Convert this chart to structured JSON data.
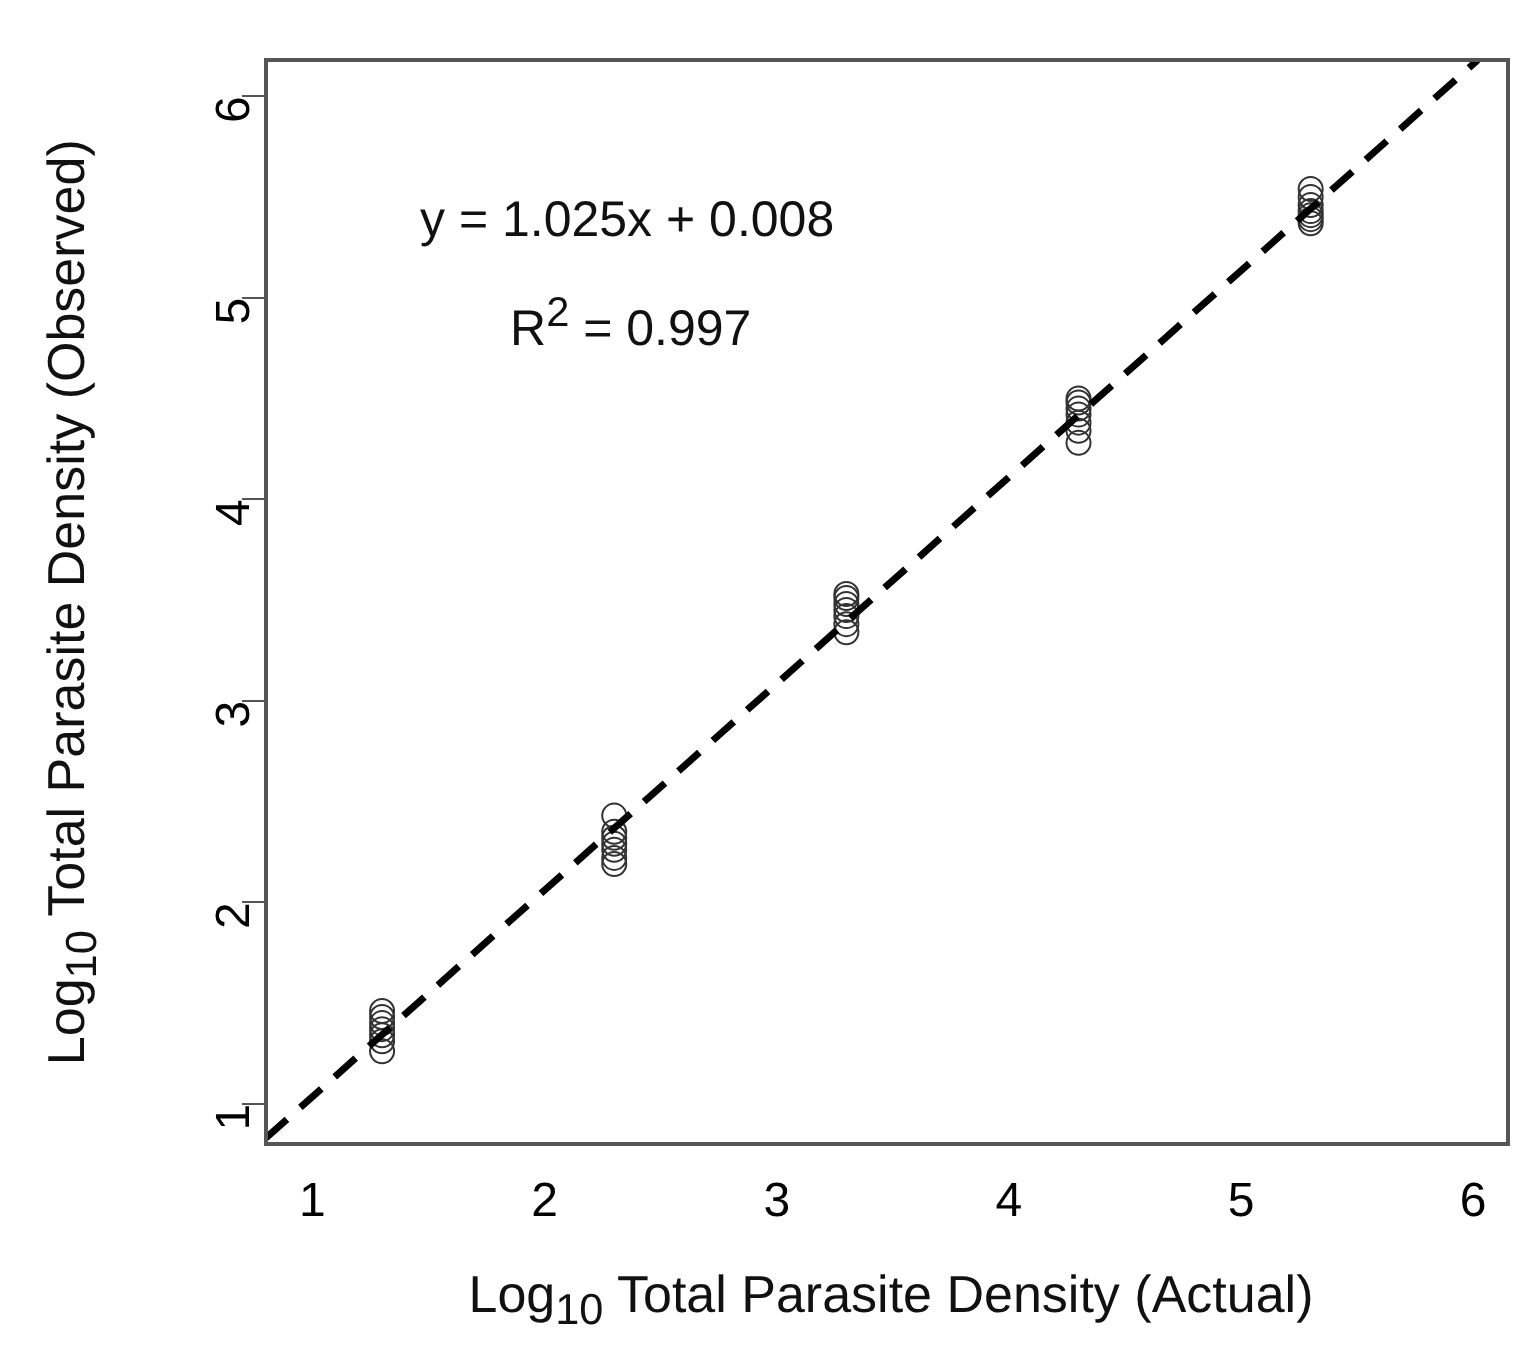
{
  "chart_data": {
    "type": "scatter",
    "xlabel": "Log$_{10}$  Total Parasite Density (Actual)",
    "ylabel": "Log$_{10}$  Total Parasite Density (Observed)",
    "annotations": [
      "y = 1.025x + 0.008",
      "R$^{2}$ = 0.997"
    ],
    "xlim": [
      0.8,
      6.15
    ],
    "ylim": [
      0.8,
      6.18
    ],
    "xticks": [
      1,
      2,
      3,
      4,
      5,
      6
    ],
    "yticks": [
      1,
      2,
      3,
      4,
      5,
      6
    ],
    "grid": false,
    "legend": false,
    "marker": "circle",
    "series": [
      {
        "color": "#333333",
        "x": [
          1.3,
          1.3,
          1.3,
          1.3,
          1.3,
          1.3,
          1.3,
          2.3,
          2.3,
          2.3,
          2.3,
          2.3,
          2.3,
          2.3,
          3.3,
          3.3,
          3.3,
          3.3,
          3.3,
          3.3,
          3.3,
          4.3,
          4.3,
          4.3,
          4.3,
          4.3,
          4.3,
          4.3,
          5.3,
          5.3,
          5.3,
          5.3,
          5.3,
          5.3,
          5.3
        ],
        "values": [
          1.26,
          1.31,
          1.34,
          1.37,
          1.4,
          1.43,
          1.46,
          2.19,
          2.22,
          2.26,
          2.29,
          2.32,
          2.35,
          2.43,
          3.34,
          3.38,
          3.42,
          3.45,
          3.48,
          3.51,
          3.53,
          4.28,
          4.34,
          4.38,
          4.42,
          4.45,
          4.48,
          4.5,
          5.37,
          5.39,
          5.41,
          5.43,
          5.46,
          5.5,
          5.54
        ]
      },
      {
        "type": "line",
        "color": "#000000",
        "line_style": "dashed",
        "marker": "none",
        "x": [
          0.8,
          6.02
        ],
        "values": [
          0.83,
          6.18
        ]
      }
    ]
  }
}
